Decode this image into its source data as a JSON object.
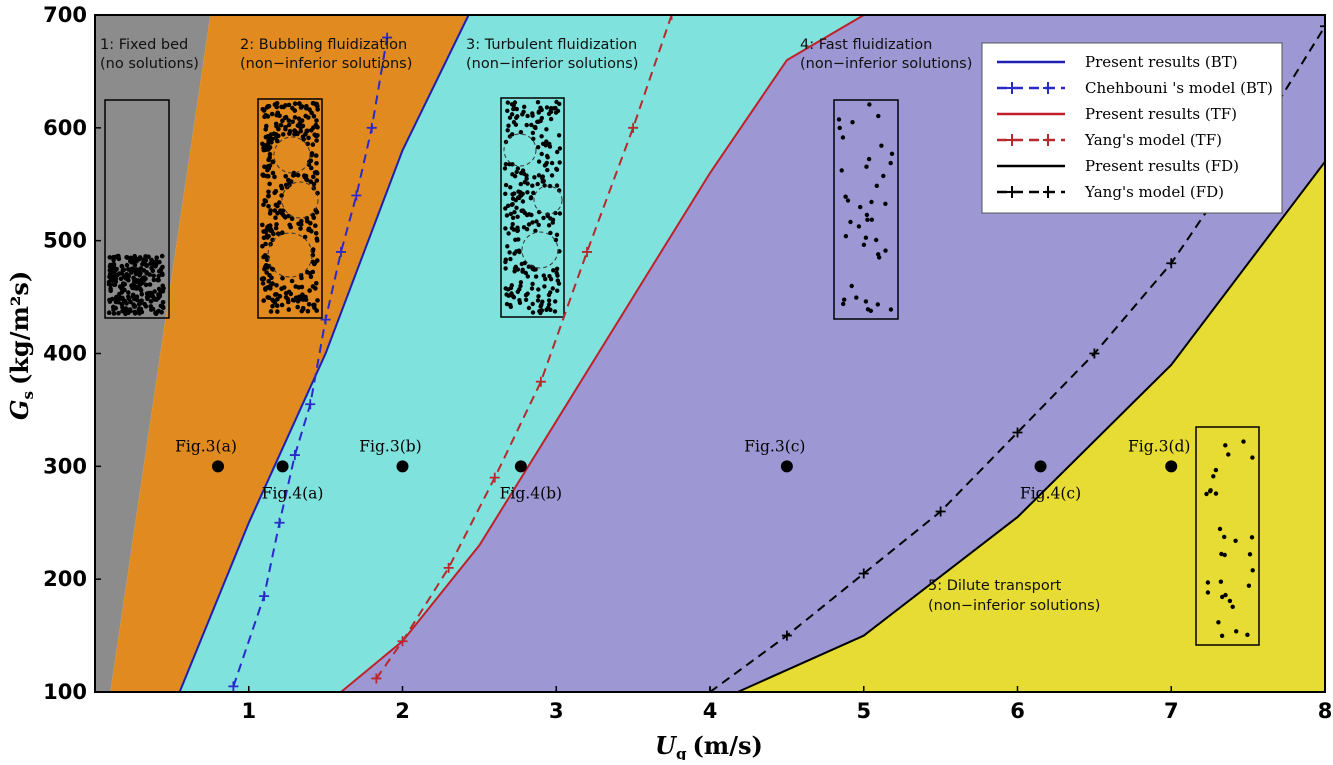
{
  "chart_data": {
    "type": "line",
    "xlabel": "U",
    "xlabel_sub": "g",
    "xlabel_unit": "(m/s)",
    "ylabel": "G",
    "ylabel_sub": "s",
    "ylabel_unit": "(kg/m²s)",
    "xlim": [
      0,
      8
    ],
    "ylim": [
      100,
      700
    ],
    "x_ticks": [
      1,
      2,
      3,
      4,
      5,
      6,
      7,
      8
    ],
    "y_ticks": [
      100,
      200,
      300,
      400,
      500,
      600,
      700
    ],
    "grid": false,
    "legend_position": "top-right",
    "regions": [
      {
        "name": "fixed-bed",
        "line1": "1: Fixed bed",
        "line2": "(no solutions)",
        "color": "#8c8c8c"
      },
      {
        "name": "bubbling",
        "line1": "2: Bubbling fluidization",
        "line2": "(non−inferior solutions)",
        "color": "#e08a20"
      },
      {
        "name": "turbulent",
        "line1": "3: Turbulent  fluidization",
        "line2": "(non−inferior solutions)",
        "color": "#7fe2dc"
      },
      {
        "name": "fast",
        "line1": "4: Fast  fluidization",
        "line2": "(non−inferior solutions)",
        "color": "#9d97d3"
      },
      {
        "name": "dilute",
        "line1": "5: Dilute  transport",
        "line2": "(non−inferior solutions)",
        "color": "#e6dc34"
      }
    ],
    "series": [
      {
        "name": "Present results (BT)",
        "color": "#1f1fb4",
        "style": "solid",
        "x": [
          0.55,
          1.0,
          1.5,
          2.0,
          2.43
        ],
        "y": [
          100,
          250,
          400,
          580,
          700
        ]
      },
      {
        "name": "Chehbouni 's model (BT)",
        "color": "#2a2acc",
        "style": "dashed-plus",
        "x": [
          0.9,
          1.1,
          1.2,
          1.3,
          1.4,
          1.5,
          1.6,
          1.7,
          1.8,
          1.9
        ],
        "y": [
          105,
          185,
          250,
          310,
          355,
          430,
          490,
          540,
          600,
          680
        ]
      },
      {
        "name": "Present results (TF)",
        "color": "#c0202a",
        "style": "solid",
        "x": [
          1.6,
          2.0,
          2.5,
          3.0,
          3.5,
          4.0,
          4.5,
          5.0
        ],
        "y": [
          100,
          145,
          230,
          340,
          450,
          560,
          660,
          700
        ]
      },
      {
        "name": "Yang's model (TF)",
        "color": "#b8282c",
        "style": "dashed-plus",
        "x": [
          1.83,
          2.0,
          2.3,
          2.6,
          2.9,
          3.2,
          3.5,
          3.75
        ],
        "y": [
          112,
          145,
          210,
          290,
          375,
          490,
          600,
          700
        ]
      },
      {
        "name": "Present results (FD)",
        "color": "#000000",
        "style": "solid",
        "x": [
          4.18,
          5.0,
          6.0,
          7.0,
          8.0
        ],
        "y": [
          100,
          150,
          255,
          390,
          570
        ]
      },
      {
        "name": "Yang's model (FD)",
        "color": "#000000",
        "style": "dashed-plus",
        "x": [
          4.0,
          4.5,
          5.0,
          5.5,
          6.0,
          6.5,
          7.0,
          7.5,
          8.0
        ],
        "y": [
          100,
          150,
          205,
          260,
          330,
          400,
          480,
          580,
          690
        ]
      }
    ],
    "points": [
      {
        "label": "Fig.3(a)",
        "x": 0.8,
        "y": 300,
        "label_pos": "above"
      },
      {
        "label": "Fig.4(a)",
        "x": 1.22,
        "y": 300,
        "label_pos": "below"
      },
      {
        "label": "Fig.3(b)",
        "x": 2.0,
        "y": 300,
        "label_pos": "above"
      },
      {
        "label": "Fig.4(b)",
        "x": 2.77,
        "y": 300,
        "label_pos": "below"
      },
      {
        "label": "Fig.3(c)",
        "x": 4.5,
        "y": 300,
        "label_pos": "above"
      },
      {
        "label": "Fig.4(c)",
        "x": 6.15,
        "y": 300,
        "label_pos": "below"
      },
      {
        "label": "Fig.3(d)",
        "x": 7.0,
        "y": 300,
        "label_pos": "above"
      }
    ]
  }
}
